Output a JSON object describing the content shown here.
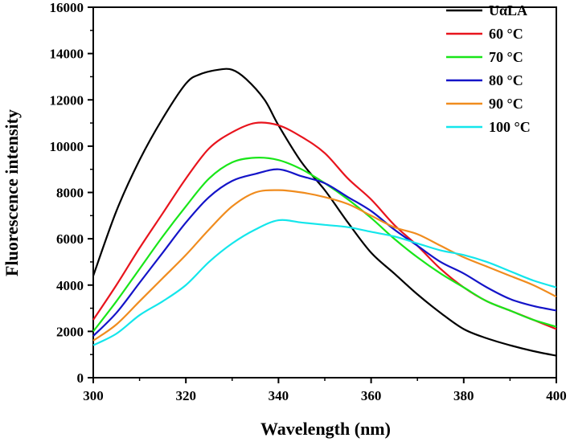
{
  "chart_data": {
    "type": "line",
    "title": "",
    "xlabel": "Wavelength (nm)",
    "ylabel": "Fluorescence intensity",
    "xlim": [
      300,
      400
    ],
    "ylim": [
      0,
      16000
    ],
    "x_ticks": [
      300,
      320,
      340,
      360,
      380,
      400
    ],
    "y_ticks": [
      0,
      2000,
      4000,
      6000,
      8000,
      10000,
      12000,
      14000,
      16000
    ],
    "grid": false,
    "legend_position": "top-right",
    "series": [
      {
        "name": "UαLA",
        "color": "#000000",
        "x": [
          300,
          305,
          310,
          315,
          320,
          323,
          327,
          330,
          333,
          337,
          340,
          345,
          350,
          355,
          360,
          365,
          370,
          375,
          380,
          385,
          390,
          395,
          400
        ],
        "y": [
          4400,
          7200,
          9400,
          11200,
          12700,
          13100,
          13300,
          13300,
          12900,
          12000,
          10900,
          9300,
          8100,
          6700,
          5400,
          4500,
          3600,
          2800,
          2100,
          1700,
          1400,
          1150,
          950
        ]
      },
      {
        "name": "60 °C",
        "color": "#e8141d",
        "x": [
          300,
          305,
          310,
          315,
          320,
          325,
          330,
          335,
          340,
          345,
          350,
          355,
          360,
          365,
          370,
          375,
          380,
          385,
          390,
          395,
          400
        ],
        "y": [
          2500,
          4000,
          5600,
          7100,
          8600,
          9900,
          10600,
          11000,
          10900,
          10400,
          9700,
          8600,
          7700,
          6600,
          5700,
          4700,
          3900,
          3300,
          2900,
          2500,
          2100
        ]
      },
      {
        "name": "70 °C",
        "color": "#19e619",
        "x": [
          300,
          305,
          310,
          315,
          320,
          325,
          330,
          335,
          340,
          345,
          350,
          355,
          360,
          365,
          370,
          375,
          380,
          385,
          390,
          395,
          400
        ],
        "y": [
          2000,
          3300,
          4700,
          6100,
          7400,
          8600,
          9300,
          9500,
          9400,
          9000,
          8400,
          7700,
          6900,
          6000,
          5200,
          4500,
          3900,
          3300,
          2900,
          2500,
          2200
        ]
      },
      {
        "name": "80 °C",
        "color": "#1414c8",
        "x": [
          300,
          305,
          310,
          315,
          320,
          325,
          330,
          335,
          340,
          345,
          350,
          355,
          360,
          365,
          370,
          375,
          380,
          385,
          390,
          395,
          400
        ],
        "y": [
          1800,
          2800,
          4100,
          5400,
          6700,
          7800,
          8500,
          8800,
          9000,
          8700,
          8400,
          7800,
          7200,
          6400,
          5700,
          5000,
          4500,
          3900,
          3400,
          3100,
          2900
        ]
      },
      {
        "name": "90 °C",
        "color": "#f08c1e",
        "x": [
          300,
          305,
          310,
          315,
          320,
          325,
          330,
          335,
          340,
          345,
          350,
          355,
          360,
          365,
          370,
          375,
          380,
          385,
          390,
          395,
          400
        ],
        "y": [
          1600,
          2300,
          3300,
          4300,
          5300,
          6400,
          7400,
          8000,
          8100,
          8000,
          7800,
          7500,
          7000,
          6500,
          6200,
          5700,
          5200,
          4800,
          4400,
          4000,
          3500
        ]
      },
      {
        "name": "100 °C",
        "color": "#14e6eb",
        "x": [
          300,
          305,
          310,
          315,
          320,
          325,
          330,
          335,
          340,
          345,
          350,
          355,
          360,
          365,
          370,
          375,
          380,
          385,
          390,
          395,
          400
        ],
        "y": [
          1400,
          1900,
          2700,
          3300,
          4000,
          5000,
          5800,
          6400,
          6800,
          6700,
          6600,
          6500,
          6300,
          6100,
          5800,
          5500,
          5300,
          5000,
          4600,
          4200,
          3900
        ]
      }
    ]
  }
}
